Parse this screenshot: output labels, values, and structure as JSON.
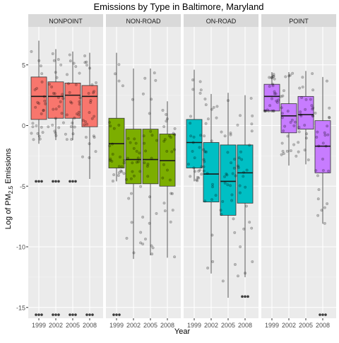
{
  "chart_data": {
    "type": "boxplot",
    "title": "Emissions by Type in Baltimore, Maryland",
    "xlabel": "Year",
    "ylabel_main": "Log of PM",
    "ylabel_sub": "2.5",
    "ylabel_tail": " Emissions",
    "ylim": [
      -15.8,
      7.6
    ],
    "y_ticks": [
      5,
      0,
      -5,
      -10,
      -15
    ],
    "y_tick_labels": [
      "5",
      "0",
      "-5",
      "-10",
      "-15"
    ],
    "x_categories": [
      "1999",
      "2002",
      "2005",
      "2008"
    ],
    "grid": true,
    "facets": [
      {
        "name": "NONPOINT",
        "color": "#f8766d",
        "boxes": [
          {
            "year": "1999",
            "min": -1.5,
            "q1": 0.5,
            "median": 2.4,
            "q3": 4.0,
            "max": 7.0,
            "outliers": [
              -4.6,
              -15.6
            ]
          },
          {
            "year": "2002",
            "min": -1.2,
            "q1": 0.6,
            "median": 2.4,
            "q3": 3.6,
            "max": 6.3,
            "outliers": [
              -4.6,
              -15.6
            ]
          },
          {
            "year": "2005",
            "min": -1.2,
            "q1": 0.6,
            "median": 2.5,
            "q3": 3.5,
            "max": 6.1,
            "outliers": [
              -4.6,
              -15.6
            ]
          },
          {
            "year": "2008",
            "min": -4.4,
            "q1": -0.1,
            "median": 2.4,
            "q3": 3.3,
            "max": 6.0,
            "outliers": [
              -15.6
            ]
          }
        ]
      },
      {
        "name": "NON-ROAD",
        "color": "#7cae00",
        "boxes": [
          {
            "year": "1999",
            "min": -4.6,
            "q1": -3.5,
            "median": -1.5,
            "q3": 0.6,
            "max": 6.0,
            "outliers": [
              -15.6
            ]
          },
          {
            "year": "2002",
            "min": -11.0,
            "q1": -4.8,
            "median": -2.8,
            "q3": -0.3,
            "max": 4.7,
            "outliers": []
          },
          {
            "year": "2005",
            "min": -10.7,
            "q1": -4.8,
            "median": -2.8,
            "q3": -0.3,
            "max": 4.7,
            "outliers": []
          },
          {
            "year": "2008",
            "min": -10.9,
            "q1": -5.0,
            "median": -2.9,
            "q3": -0.7,
            "max": 2.0,
            "outliers": []
          }
        ]
      },
      {
        "name": "ON-ROAD",
        "color": "#00bfc4",
        "boxes": [
          {
            "year": "1999",
            "min": -4.6,
            "q1": -3.5,
            "median": -1.4,
            "q3": 0.5,
            "max": 4.6,
            "outliers": []
          },
          {
            "year": "2002",
            "min": -12.2,
            "q1": -6.3,
            "median": -4.0,
            "q3": -1.4,
            "max": 2.6,
            "outliers": []
          },
          {
            "year": "2005",
            "min": -14.2,
            "q1": -7.4,
            "median": -4.6,
            "q3": -1.6,
            "max": 2.7,
            "outliers": []
          },
          {
            "year": "2008",
            "min": -12.5,
            "q1": -6.4,
            "median": -3.9,
            "q3": -1.6,
            "max": 2.5,
            "outliers": [
              -14.1
            ]
          }
        ]
      },
      {
        "name": "POINT",
        "color": "#c77cff",
        "boxes": [
          {
            "year": "1999",
            "min": 1.2,
            "q1": 1.2,
            "median": 2.4,
            "q3": 3.4,
            "max": 4.4,
            "outliers": []
          },
          {
            "year": "2002",
            "min": -3.3,
            "q1": -0.6,
            "median": 0.8,
            "q3": 1.8,
            "max": 4.4,
            "outliers": []
          },
          {
            "year": "2005",
            "min": -3.2,
            "q1": -0.3,
            "median": 0.9,
            "q3": 2.4,
            "max": 4.5,
            "outliers": []
          },
          {
            "year": "2008",
            "min": -8.1,
            "q1": -3.9,
            "median": -1.7,
            "q3": 0.4,
            "max": 4.0,
            "outliers": [
              -15.6
            ]
          }
        ]
      }
    ]
  }
}
